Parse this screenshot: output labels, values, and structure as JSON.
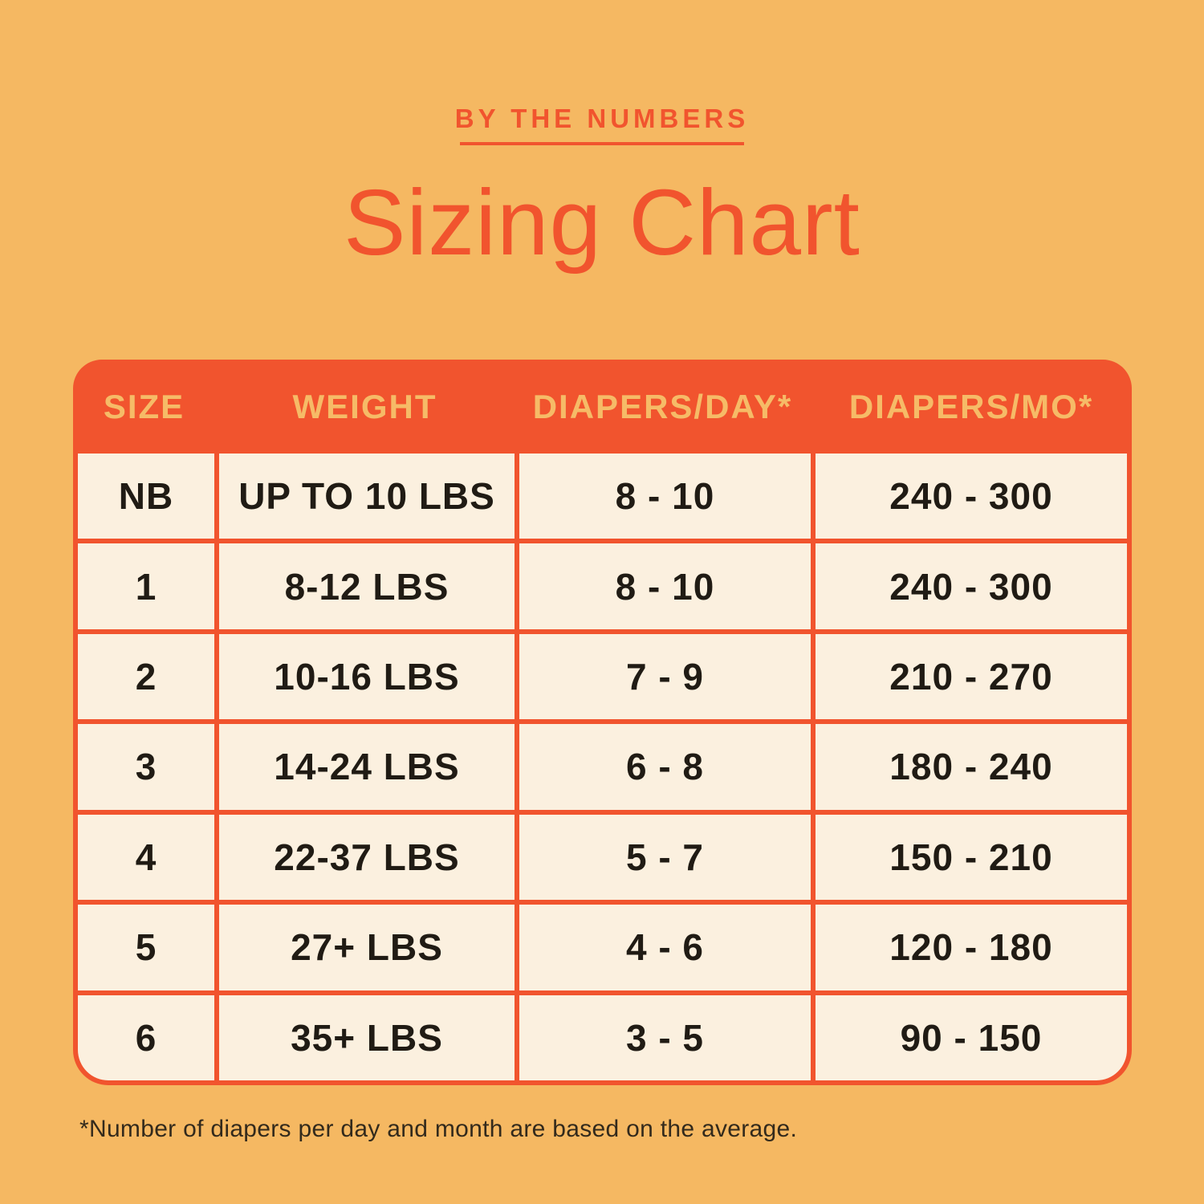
{
  "palette": {
    "background": "#F5B862",
    "accent": "#F1542E",
    "cream": "#FBF0DF",
    "ink": "#201B14",
    "header_label": "#F6BB67",
    "footnote_ink": "#332A1C"
  },
  "header": {
    "eyebrow": "BY THE NUMBERS",
    "title": "Sizing Chart"
  },
  "chart_data": {
    "type": "table",
    "title": "Sizing Chart",
    "subtitle": "BY THE NUMBERS",
    "columns": [
      "SIZE",
      "WEIGHT",
      "DIAPERS/DAY*",
      "DIAPERS/MO*"
    ],
    "rows": [
      [
        "NB",
        "UP TO 10 LBS",
        "8 - 10",
        "240 - 300"
      ],
      [
        "1",
        "8-12 LBS",
        "8 - 10",
        "240 - 300"
      ],
      [
        "2",
        "10-16 LBS",
        "7 - 9",
        "210 - 270"
      ],
      [
        "3",
        "14-24 LBS",
        "6 - 8",
        "180 - 240"
      ],
      [
        "4",
        "22-37 LBS",
        "5 - 7",
        "150 - 210"
      ],
      [
        "5",
        "27+ LBS",
        "4 - 6",
        "120 - 180"
      ],
      [
        "6",
        "35+ LBS",
        "3 - 5",
        "90 - 150"
      ]
    ]
  },
  "footnote": "*Number of diapers per day and month are based on the average."
}
